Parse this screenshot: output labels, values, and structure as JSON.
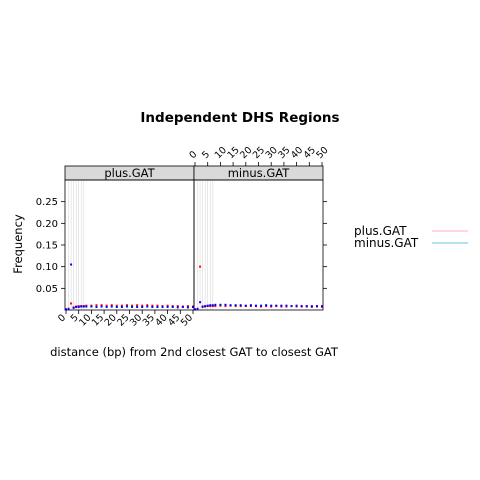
{
  "chart_data": {
    "type": "scatter",
    "title": "Independent DHS Regions",
    "xlabel": "distance (bp) from 2nd closest GAT to closest GAT",
    "ylabel": "Frequency",
    "xlim": [
      0,
      50
    ],
    "ylim": [
      0,
      0.3
    ],
    "x_ticks": [
      0,
      5,
      10,
      15,
      20,
      25,
      30,
      35,
      40,
      45,
      50
    ],
    "y_ticks": [
      0.05,
      0.1,
      0.15,
      0.2,
      0.25
    ],
    "y_tick_labels": [
      "0.05",
      "0.10",
      "0.15",
      "0.20",
      "0.25"
    ],
    "grid": "vertical dotted lines at x = 1..7",
    "legend_placement": "right",
    "legend": [
      {
        "label": "plus.GAT",
        "color": "#ffc0cb"
      },
      {
        "label": "minus.GAT",
        "color": "#87ceeb"
      }
    ],
    "panels": [
      {
        "strip": "plus.GAT",
        "series": [
          {
            "color": "#ff0000",
            "points": [
              [
                0,
                0.002
              ],
              [
                1,
                0.003
              ],
              [
                2,
                0.015
              ],
              [
                3,
                0.006
              ],
              [
                4,
                0.008
              ],
              [
                5,
                0.009
              ],
              [
                6,
                0.009
              ],
              [
                7,
                0.009
              ],
              [
                8,
                0.01
              ],
              [
                10,
                0.01
              ],
              [
                12,
                0.011
              ],
              [
                14,
                0.011
              ],
              [
                16,
                0.01
              ],
              [
                18,
                0.011
              ],
              [
                20,
                0.01
              ],
              [
                22,
                0.01
              ],
              [
                24,
                0.011
              ],
              [
                26,
                0.01
              ],
              [
                28,
                0.011
              ],
              [
                30,
                0.01
              ],
              [
                32,
                0.011
              ],
              [
                34,
                0.01
              ],
              [
                36,
                0.01
              ],
              [
                38,
                0.009
              ],
              [
                40,
                0.01
              ],
              [
                42,
                0.009
              ],
              [
                44,
                0.009
              ],
              [
                46,
                0.008
              ],
              [
                48,
                0.009
              ],
              [
                50,
                0.008
              ]
            ]
          },
          {
            "color": "#0000ff",
            "points": [
              [
                0,
                0.001
              ],
              [
                1,
                0.002
              ],
              [
                2,
                0.105
              ],
              [
                3,
                0.005
              ],
              [
                4,
                0.007
              ],
              [
                5,
                0.007
              ],
              [
                6,
                0.008
              ],
              [
                7,
                0.008
              ],
              [
                8,
                0.008
              ],
              [
                10,
                0.008
              ],
              [
                12,
                0.007
              ],
              [
                14,
                0.008
              ],
              [
                16,
                0.007
              ],
              [
                18,
                0.008
              ],
              [
                20,
                0.007
              ],
              [
                22,
                0.007
              ],
              [
                24,
                0.008
              ],
              [
                26,
                0.007
              ],
              [
                28,
                0.007
              ],
              [
                30,
                0.007
              ],
              [
                32,
                0.008
              ],
              [
                34,
                0.007
              ],
              [
                36,
                0.007
              ],
              [
                38,
                0.007
              ],
              [
                40,
                0.007
              ],
              [
                42,
                0.007
              ],
              [
                44,
                0.006
              ],
              [
                46,
                0.007
              ],
              [
                48,
                0.006
              ],
              [
                50,
                0.007
              ]
            ]
          }
        ]
      },
      {
        "strip": "minus.GAT",
        "series": [
          {
            "color": "#ff0000",
            "points": [
              [
                0,
                0.002
              ],
              [
                1,
                0.003
              ],
              [
                2,
                0.1
              ],
              [
                3,
                0.007
              ],
              [
                4,
                0.008
              ],
              [
                5,
                0.009
              ],
              [
                6,
                0.009
              ],
              [
                7,
                0.009
              ],
              [
                8,
                0.009
              ],
              [
                10,
                0.01
              ],
              [
                12,
                0.009
              ],
              [
                14,
                0.01
              ],
              [
                16,
                0.009
              ],
              [
                18,
                0.009
              ],
              [
                20,
                0.009
              ],
              [
                22,
                0.009
              ],
              [
                24,
                0.009
              ],
              [
                26,
                0.008
              ],
              [
                28,
                0.009
              ],
              [
                30,
                0.008
              ],
              [
                32,
                0.009
              ],
              [
                34,
                0.008
              ],
              [
                36,
                0.008
              ],
              [
                38,
                0.009
              ],
              [
                40,
                0.008
              ],
              [
                42,
                0.008
              ],
              [
                44,
                0.008
              ],
              [
                46,
                0.007
              ],
              [
                48,
                0.008
              ],
              [
                50,
                0.007
              ]
            ]
          },
          {
            "color": "#0000ff",
            "points": [
              [
                0,
                0.001
              ],
              [
                1,
                0.002
              ],
              [
                2,
                0.018
              ],
              [
                3,
                0.008
              ],
              [
                4,
                0.009
              ],
              [
                5,
                0.01
              ],
              [
                6,
                0.011
              ],
              [
                7,
                0.011
              ],
              [
                8,
                0.012
              ],
              [
                10,
                0.012
              ],
              [
                12,
                0.012
              ],
              [
                14,
                0.011
              ],
              [
                16,
                0.011
              ],
              [
                18,
                0.011
              ],
              [
                20,
                0.01
              ],
              [
                22,
                0.011
              ],
              [
                24,
                0.01
              ],
              [
                26,
                0.01
              ],
              [
                28,
                0.011
              ],
              [
                30,
                0.01
              ],
              [
                32,
                0.01
              ],
              [
                34,
                0.01
              ],
              [
                36,
                0.01
              ],
              [
                38,
                0.009
              ],
              [
                40,
                0.01
              ],
              [
                42,
                0.009
              ],
              [
                44,
                0.009
              ],
              [
                46,
                0.009
              ],
              [
                48,
                0.009
              ],
              [
                50,
                0.009
              ]
            ]
          }
        ]
      }
    ]
  }
}
